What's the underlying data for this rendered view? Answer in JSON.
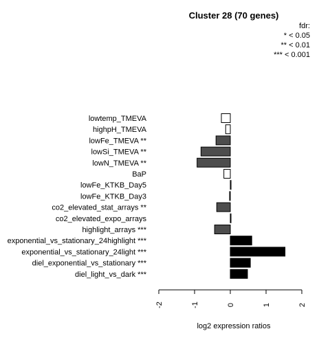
{
  "chart_data": {
    "type": "bar",
    "orientation": "horizontal",
    "title": "Cluster 28 (70 genes)",
    "xlabel": "log2 expression ratios",
    "xlim": [
      -2,
      2
    ],
    "xticks": [
      "-2",
      "-1",
      "0",
      "1",
      "2"
    ],
    "legend": {
      "title": "fdr:",
      "entries": [
        "* < 0.05",
        "** < 0.01",
        "*** < 0.001"
      ],
      "placement": "top-right"
    },
    "categories": [
      "lowtemp_TMEVA",
      "highpH_TMEVA",
      "lowFe_TMEVA **",
      "lowSi_TMEVA **",
      "lowN_TMEVA **",
      "BaP",
      "lowFe_KTKB_Day5",
      "lowFe_KTKB_Day3",
      "co2_elevated_stat_arrays **",
      "co2_elevated_expo_arrays",
      "highlight_arrays ***",
      "exponential_vs_stationary_24highlight ***",
      "exponential_vs_stationary_24light ***",
      "diel_exponential_vs_stationary ***",
      "diel_light_vs_dark ***"
    ],
    "values": [
      -0.25,
      -0.13,
      -0.4,
      -0.82,
      -0.93,
      -0.18,
      0.02,
      -0.02,
      -0.38,
      0.01,
      -0.44,
      0.6,
      1.53,
      0.56,
      0.48
    ],
    "fill_levels": [
      "none",
      "none",
      "dark",
      "dark",
      "dark",
      "none",
      "none",
      "none",
      "dark",
      "none",
      "dark",
      "black",
      "black",
      "black",
      "black"
    ],
    "colors": {
      "none": "#ffffff",
      "dark": "#4d4d4d",
      "black": "#000000"
    }
  }
}
